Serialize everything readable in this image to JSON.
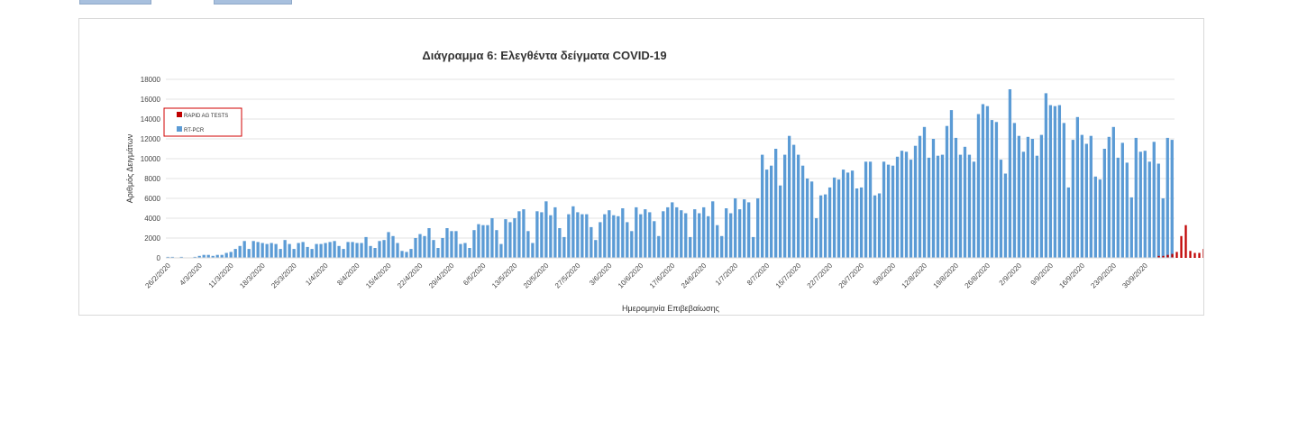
{
  "chart_data": {
    "type": "bar",
    "title": "Διάγραμμα 6: Ελεγθέντα δείγματα COVID-19",
    "xlabel": "Ημερομηνία Επιβεβαίωσης",
    "ylabel": "Αριθμός Δειγμάτων",
    "ylim": [
      0,
      18000
    ],
    "yticks": [
      0,
      2000,
      4000,
      6000,
      8000,
      10000,
      12000,
      14000,
      16000,
      18000
    ],
    "grid": true,
    "legend_position": "top-left",
    "x_start": "26/2/2020",
    "x_tick_labels": [
      "26/2/2020",
      "4/3/2020",
      "11/3/2020",
      "18/3/2020",
      "25/3/2020",
      "1/4/2020",
      "8/4/2020",
      "15/4/2020",
      "22/4/2020",
      "29/4/2020",
      "6/5/2020",
      "13/5/2020",
      "20/5/2020",
      "27/5/2020",
      "3/6/2020",
      "10/6/2020",
      "17/6/2020",
      "24/6/2020",
      "1/7/2020",
      "8/7/2020",
      "15/7/2020",
      "22/7/2020",
      "29/7/2020",
      "5/8/2020",
      "12/8/2020",
      "19/8/2020",
      "26/8/2020",
      "2/9/2020",
      "9/9/2020",
      "16/9/2020",
      "23/9/2020",
      "30/9/2020"
    ],
    "series": [
      {
        "name": "RAPID AG TESTS",
        "color": "#c00000",
        "values": [
          0,
          0,
          0,
          0,
          0,
          0,
          0,
          0,
          0,
          0,
          0,
          0,
          0,
          0,
          0,
          0,
          0,
          0,
          0,
          0,
          0,
          0,
          0,
          0,
          0,
          0,
          0,
          0,
          0,
          0,
          0,
          0,
          0,
          0,
          0,
          0,
          0,
          0,
          0,
          0,
          0,
          0,
          0,
          0,
          0,
          0,
          0,
          0,
          0,
          0,
          0,
          0,
          0,
          0,
          0,
          0,
          0,
          0,
          0,
          0,
          0,
          0,
          0,
          0,
          0,
          0,
          0,
          0,
          0,
          0,
          0,
          0,
          0,
          0,
          0,
          0,
          0,
          0,
          0,
          0,
          0,
          0,
          0,
          0,
          0,
          0,
          0,
          0,
          0,
          0,
          0,
          0,
          0,
          0,
          0,
          0,
          0,
          0,
          0,
          0,
          0,
          0,
          0,
          0,
          0,
          0,
          0,
          0,
          0,
          0,
          0,
          0,
          0,
          0,
          0,
          0,
          0,
          0,
          0,
          0,
          0,
          0,
          0,
          0,
          0,
          0,
          0,
          0,
          0,
          0,
          0,
          0,
          0,
          0,
          0,
          0,
          0,
          0,
          0,
          0,
          0,
          0,
          0,
          0,
          0,
          0,
          0,
          0,
          0,
          0,
          0,
          0,
          0,
          0,
          0,
          0,
          0,
          0,
          0,
          0,
          0,
          0,
          0,
          0,
          0,
          0,
          0,
          0,
          0,
          0,
          0,
          0,
          0,
          0,
          0,
          0,
          0,
          0,
          0,
          0,
          0,
          0,
          0,
          0,
          0,
          0,
          0,
          0,
          0,
          0,
          0,
          0,
          0,
          0,
          0,
          0,
          0,
          0,
          0,
          0,
          0,
          0,
          0,
          0,
          0,
          0,
          0,
          0,
          0,
          0,
          0,
          0,
          0,
          0,
          0,
          0,
          0,
          0,
          0,
          0,
          200,
          200,
          300,
          400,
          600,
          2200,
          3300,
          700,
          500,
          500,
          900,
          200,
          300,
          200,
          1300,
          800,
          900,
          1000,
          900,
          1000,
          1100,
          1000,
          1200,
          1200,
          1300,
          1400,
          1500,
          1600
        ]
      },
      {
        "name": "RT-PCR",
        "color": "#5b9bd5",
        "values": [
          100,
          100,
          0,
          100,
          0,
          0,
          100,
          200,
          300,
          300,
          200,
          300,
          300,
          500,
          600,
          900,
          1200,
          1700,
          900,
          1700,
          1600,
          1500,
          1400,
          1500,
          1400,
          900,
          1800,
          1400,
          900,
          1500,
          1600,
          1100,
          900,
          1400,
          1400,
          1500,
          1600,
          1700,
          1200,
          900,
          1600,
          1600,
          1500,
          1500,
          2100,
          1200,
          1000,
          1700,
          1800,
          2600,
          2200,
          1500,
          700,
          600,
          900,
          2000,
          2400,
          2200,
          3000,
          1800,
          1000,
          2000,
          3000,
          2700,
          2700,
          1400,
          1500,
          1000,
          2800,
          3400,
          3300,
          3300,
          4000,
          2800,
          1400,
          3900,
          3600,
          4000,
          4700,
          4900,
          2700,
          1500,
          4700,
          4600,
          5700,
          4300,
          5100,
          3000,
          2100,
          4400,
          5200,
          4600,
          4400,
          4400,
          3100,
          1800,
          3600,
          4400,
          4800,
          4300,
          4200,
          5000,
          3600,
          2700,
          5100,
          4400,
          4900,
          4600,
          3700,
          2200,
          4700,
          5100,
          5600,
          5100,
          4800,
          4500,
          2100,
          4900,
          4500,
          5100,
          4200,
          5700,
          3300,
          2200,
          5000,
          4500,
          6000,
          4900,
          5900,
          5600,
          2100,
          6000,
          10400,
          8900,
          9300,
          11000,
          7300,
          10400,
          12300,
          11400,
          10400,
          9300,
          8000,
          7700,
          4000,
          6300,
          6400,
          7100,
          8100,
          7900,
          8900,
          8600,
          8800,
          7000,
          7100,
          9700,
          9700,
          6300,
          6500,
          9700,
          9400,
          9300,
          10200,
          10800,
          10700,
          9900,
          11300,
          12300,
          13200,
          10100,
          12000,
          10300,
          10400,
          13300,
          14900,
          12100,
          10400,
          11200,
          10400,
          9700,
          14500,
          15500,
          15300,
          13900,
          13700,
          9900,
          8500,
          17000,
          13600,
          12300,
          10700,
          12200,
          12000,
          10300,
          12400,
          16600,
          15400,
          15300,
          15400,
          13600,
          7100,
          11900,
          14200,
          12400,
          11500,
          12300,
          8200,
          7900,
          11000,
          12200,
          13200,
          10100,
          11600,
          9600,
          6100,
          12100,
          10700,
          10800,
          9700,
          11700,
          9500,
          6000,
          12100,
          11900
        ]
      }
    ]
  }
}
